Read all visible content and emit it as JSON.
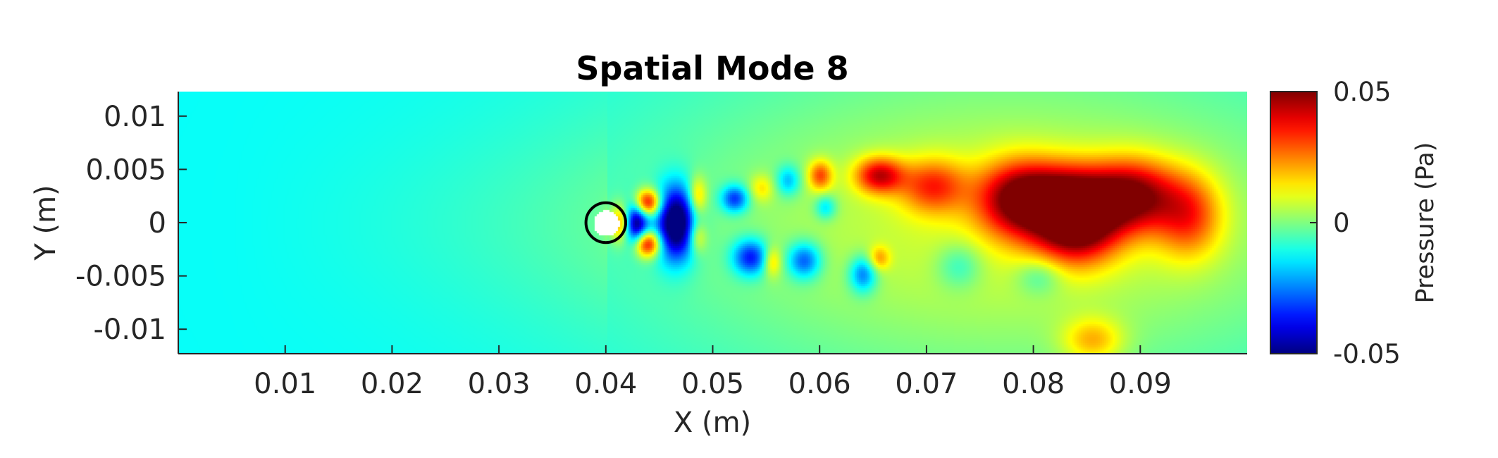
{
  "chart_data": {
    "type": "heatmap",
    "title": "Spatial Mode 8",
    "xlabel": "X (m)",
    "ylabel": "Y (m)",
    "xlim": [
      0,
      0.1
    ],
    "ylim": [
      -0.0123,
      0.0123
    ],
    "x_ticks": [
      0.01,
      0.02,
      0.03,
      0.04,
      0.05,
      0.06,
      0.07,
      0.08,
      0.09
    ],
    "x_tick_labels": [
      "0.01",
      "0.02",
      "0.03",
      "0.04",
      "0.05",
      "0.06",
      "0.07",
      "0.08",
      "0.09"
    ],
    "y_ticks": [
      0.01,
      0.005,
      0,
      -0.005,
      -0.01
    ],
    "y_tick_labels": [
      "0.01",
      "0.005",
      "0",
      "-0.005",
      "-0.01"
    ],
    "colorbar": {
      "label": "Pressure (Pa)",
      "limits": [
        -0.05,
        0.05
      ],
      "ticks": [
        0.05,
        0,
        -0.05
      ],
      "tick_labels": [
        "0.05",
        "0",
        "-0.05"
      ],
      "colormap": "jet"
    },
    "background_level": -0.012,
    "cylinder": {
      "x": 0.04,
      "y": 0,
      "r": 0.0012
    },
    "features": [
      {
        "x": 0.0438,
        "y": 0.0019,
        "sx": 0.0009,
        "sy": 0.0009,
        "value": 0.05
      },
      {
        "x": 0.0438,
        "y": -0.0019,
        "sx": 0.0009,
        "sy": 0.0009,
        "value": 0.05
      },
      {
        "x": 0.0413,
        "y": 0.0,
        "sx": 0.0007,
        "sy": 0.0012,
        "value": 0.03
      },
      {
        "x": 0.0428,
        "y": 0.0,
        "sx": 0.0008,
        "sy": 0.0015,
        "value": -0.05
      },
      {
        "x": 0.0465,
        "y": 0.0,
        "sx": 0.0013,
        "sy": 0.0024,
        "value": -0.06
      },
      {
        "x": 0.0485,
        "y": 0.0025,
        "sx": 0.0006,
        "sy": 0.0013,
        "value": 0.024
      },
      {
        "x": 0.0485,
        "y": -0.0013,
        "sx": 0.0006,
        "sy": 0.0011,
        "value": 0.02
      },
      {
        "x": 0.052,
        "y": 0.0023,
        "sx": 0.0009,
        "sy": 0.0009,
        "value": -0.032
      },
      {
        "x": 0.0535,
        "y": -0.0032,
        "sx": 0.0012,
        "sy": 0.0012,
        "value": -0.036
      },
      {
        "x": 0.0545,
        "y": 0.0033,
        "sx": 0.0008,
        "sy": 0.0009,
        "value": 0.014
      },
      {
        "x": 0.0555,
        "y": -0.0036,
        "sx": 0.0006,
        "sy": 0.001,
        "value": 0.02
      },
      {
        "x": 0.057,
        "y": 0.004,
        "sx": 0.0008,
        "sy": 0.001,
        "value": -0.02
      },
      {
        "x": 0.0585,
        "y": -0.0035,
        "sx": 0.0011,
        "sy": 0.0012,
        "value": -0.03
      },
      {
        "x": 0.06,
        "y": 0.0045,
        "sx": 0.0008,
        "sy": 0.001,
        "value": 0.028
      },
      {
        "x": 0.0605,
        "y": 0.0015,
        "sx": 0.0007,
        "sy": 0.0008,
        "value": -0.018
      },
      {
        "x": 0.064,
        "y": -0.0048,
        "sx": 0.0009,
        "sy": 0.0012,
        "value": -0.028
      },
      {
        "x": 0.0655,
        "y": -0.0033,
        "sx": 0.0007,
        "sy": 0.0008,
        "value": 0.018
      },
      {
        "x": 0.0655,
        "y": 0.0045,
        "sx": 0.0016,
        "sy": 0.0012,
        "value": 0.038
      },
      {
        "x": 0.0705,
        "y": 0.0035,
        "sx": 0.0022,
        "sy": 0.0018,
        "value": 0.028
      },
      {
        "x": 0.073,
        "y": -0.004,
        "sx": 0.0015,
        "sy": 0.0015,
        "value": -0.013
      },
      {
        "x": 0.0785,
        "y": 0.0022,
        "sx": 0.0028,
        "sy": 0.0025,
        "value": 0.042
      },
      {
        "x": 0.084,
        "y": -0.0002,
        "sx": 0.0028,
        "sy": 0.0025,
        "value": 0.05
      },
      {
        "x": 0.0835,
        "y": 0.0028,
        "sx": 0.0035,
        "sy": 0.0022,
        "value": 0.03
      },
      {
        "x": 0.0895,
        "y": 0.0026,
        "sx": 0.0028,
        "sy": 0.0024,
        "value": 0.04
      },
      {
        "x": 0.0945,
        "y": 0.0007,
        "sx": 0.0022,
        "sy": 0.0028,
        "value": 0.028
      },
      {
        "x": 0.0805,
        "y": -0.005,
        "sx": 0.0015,
        "sy": 0.0012,
        "value": -0.012
      },
      {
        "x": 0.0855,
        "y": -0.011,
        "sx": 0.002,
        "sy": 0.0015,
        "value": 0.02
      },
      {
        "x": 0.08,
        "y": 0.0,
        "sx": 0.025,
        "sy": 0.009,
        "value": 0.013
      },
      {
        "x": 0.075,
        "y": 0.0,
        "sx": 0.025,
        "sy": 0.02,
        "value": 0.008
      }
    ]
  }
}
